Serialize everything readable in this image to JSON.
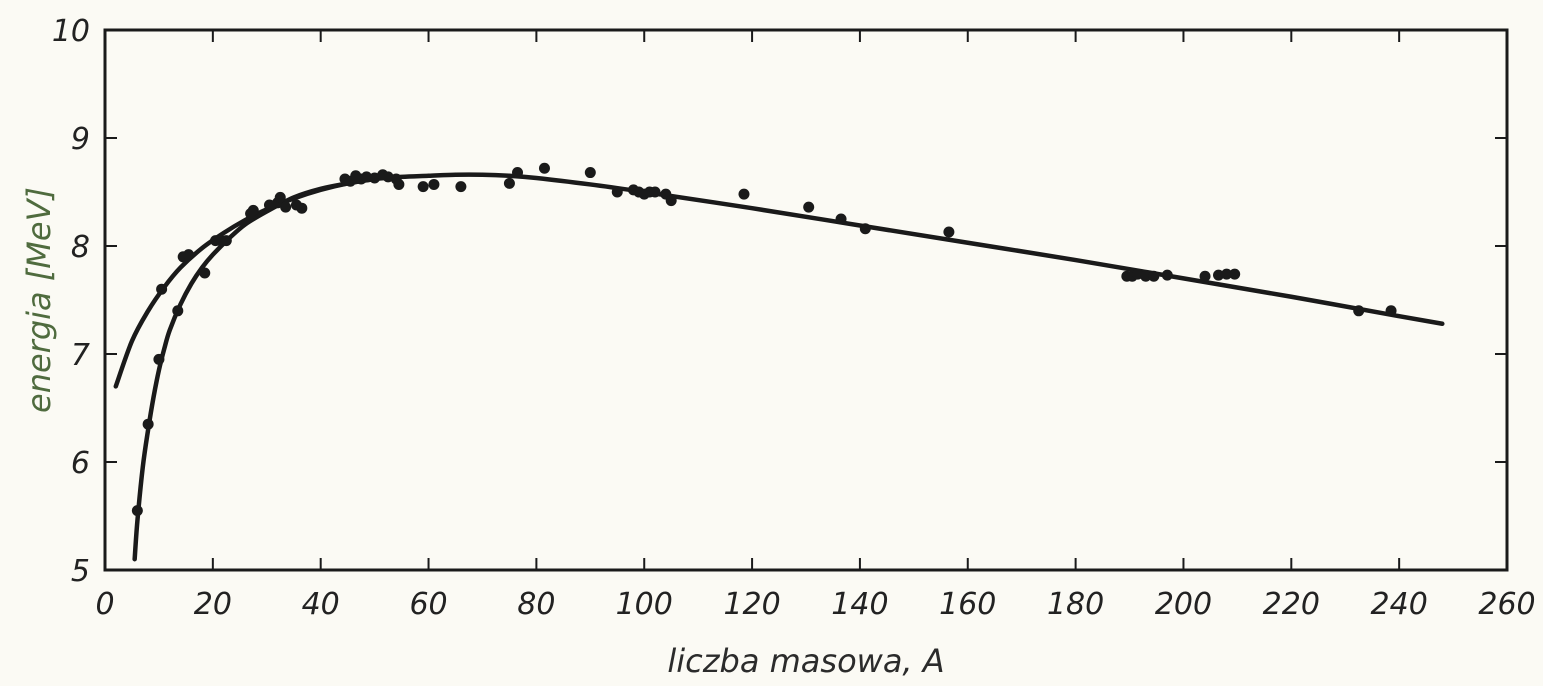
{
  "chart_data": {
    "type": "scatter",
    "title": "",
    "xlabel": "liczba masowa, A",
    "ylabel": "energia [MeV]",
    "xlim": [
      0,
      260
    ],
    "ylim": [
      5,
      10
    ],
    "xticks": [
      "0",
      "20",
      "40",
      "60",
      "80",
      "100",
      "120",
      "140",
      "160",
      "180",
      "200",
      "220",
      "240",
      "260"
    ],
    "yticks": [
      "5",
      "6",
      "7",
      "8",
      "9",
      "10"
    ],
    "grid": false,
    "colors": {
      "ink": "#1a1a1a",
      "xlabel": "#2b2b2b",
      "ylabel": "#4f6b3e",
      "background": "#fbfaf4"
    },
    "series": [
      {
        "kind": "points",
        "x": [
          6,
          8,
          10,
          10.5,
          13.5,
          14.5,
          15.5,
          18.5,
          20.5,
          21.5,
          22.5,
          27,
          27.5,
          30.5,
          32,
          32.5,
          33.5,
          35.5,
          36.5,
          44.5,
          45.5,
          46.5,
          47.5,
          48.5,
          50,
          51.5,
          52.5,
          54,
          54.5,
          59,
          61,
          66,
          75,
          76.5,
          81.5,
          90,
          95,
          98,
          99,
          100,
          101,
          102,
          104,
          105,
          118.5,
          130.5,
          136.5,
          141,
          156.5,
          189.5,
          190.5,
          191.5,
          193,
          194.5,
          197,
          204,
          206.5,
          208,
          209.5,
          232.5,
          238.5
        ],
        "y": [
          5.55,
          6.35,
          6.95,
          7.6,
          7.4,
          7.9,
          7.92,
          7.75,
          8.05,
          8.05,
          8.05,
          8.3,
          8.33,
          8.38,
          8.4,
          8.45,
          8.36,
          8.38,
          8.35,
          8.62,
          8.6,
          8.65,
          8.62,
          8.64,
          8.63,
          8.66,
          8.64,
          8.62,
          8.57,
          8.55,
          8.57,
          8.55,
          8.58,
          8.68,
          8.72,
          8.68,
          8.5,
          8.52,
          8.5,
          8.48,
          8.5,
          8.5,
          8.48,
          8.42,
          8.48,
          8.36,
          8.25,
          8.16,
          8.13,
          7.72,
          7.72,
          7.74,
          7.72,
          7.72,
          7.73,
          7.72,
          7.73,
          7.74,
          7.74,
          7.4,
          7.4
        ]
      },
      {
        "kind": "curve",
        "x": [
          2,
          5,
          8,
          11,
          14,
          18,
          22,
          26,
          30,
          35,
          40,
          45,
          50,
          55,
          60,
          65,
          70,
          75,
          80,
          90,
          100,
          120,
          140,
          160,
          180,
          200,
          220,
          240,
          248
        ],
        "y": [
          6.7,
          7.12,
          7.4,
          7.62,
          7.8,
          7.98,
          8.12,
          8.24,
          8.34,
          8.44,
          8.52,
          8.58,
          8.62,
          8.64,
          8.65,
          8.66,
          8.66,
          8.65,
          8.63,
          8.57,
          8.5,
          8.35,
          8.19,
          8.03,
          7.87,
          7.7,
          7.53,
          7.35,
          7.28
        ]
      },
      {
        "kind": "curve",
        "x": [
          5.5,
          6,
          7,
          8,
          9,
          10,
          11,
          12,
          14,
          16,
          18,
          20,
          23,
          26,
          30,
          35,
          40,
          45,
          50
        ],
        "y": [
          5.1,
          5.45,
          5.95,
          6.3,
          6.6,
          6.85,
          7.05,
          7.22,
          7.46,
          7.65,
          7.8,
          7.92,
          8.07,
          8.2,
          8.32,
          8.45,
          8.53,
          8.58,
          8.62
        ]
      }
    ]
  }
}
